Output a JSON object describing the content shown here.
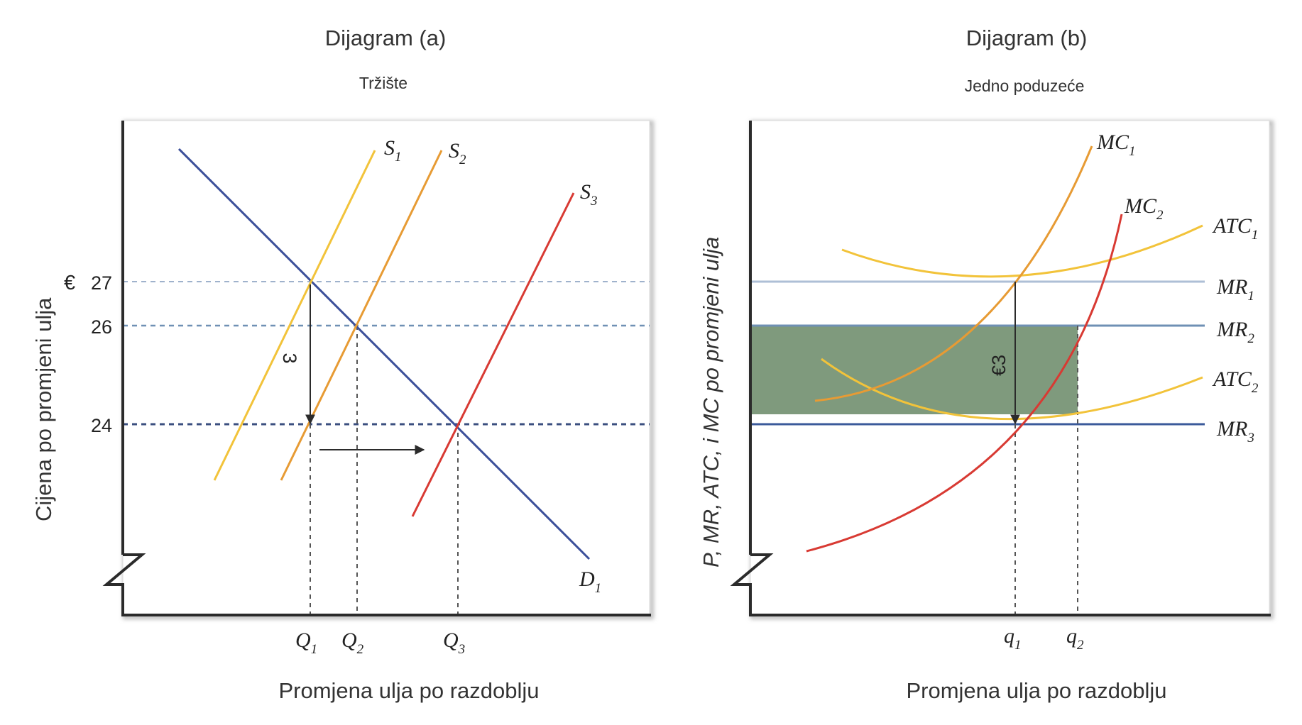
{
  "panel_a": {
    "title": "Dijagram (a)",
    "subtitle": "Tržište",
    "y_axis_title": "Cijena po promjeni ulja",
    "x_axis_title": "Promjena ulja po razdoblju",
    "currency_symbol": "€",
    "price_ticks": [
      "27",
      "26",
      "24"
    ],
    "price_drop_label": "3",
    "curves": {
      "s1": {
        "base": "S",
        "sub": "1"
      },
      "s2": {
        "base": "S",
        "sub": "2"
      },
      "s3": {
        "base": "S",
        "sub": "3"
      },
      "d1": {
        "base": "D",
        "sub": "1"
      }
    },
    "quantity_ticks": [
      {
        "base": "Q",
        "sub": "1"
      },
      {
        "base": "Q",
        "sub": "2"
      },
      {
        "base": "Q",
        "sub": "3"
      }
    ]
  },
  "panel_b": {
    "title": "Dijagram (b)",
    "subtitle": "Jedno poduzeće",
    "y_axis_title": "P, MR, ATC, i MC po promjeni ulja",
    "x_axis_title": "Promjena ulja po razdoblju",
    "price_drop_label": "€3",
    "curves": {
      "mc1": {
        "base": "MC",
        "sub": "1"
      },
      "mc2": {
        "base": "MC",
        "sub": "2"
      },
      "atc1": {
        "base": "ATC",
        "sub": "1"
      },
      "atc2": {
        "base": "ATC",
        "sub": "2"
      },
      "mr1": {
        "base": "MR",
        "sub": "1"
      },
      "mr2": {
        "base": "MR",
        "sub": "2"
      },
      "mr3": {
        "base": "MR",
        "sub": "3"
      }
    },
    "quantity_ticks": [
      {
        "base": "q",
        "sub": "1"
      },
      {
        "base": "q",
        "sub": "2"
      }
    ]
  },
  "colors": {
    "demand": "#3b4f9a",
    "s1": "#f2c33a",
    "s2": "#e79b34",
    "s3": "#d83a33",
    "mc1": "#e79b34",
    "mc2": "#d83a33",
    "atc": "#f2c33a",
    "mr1": "#aebfd6",
    "mr2": "#6f90b4",
    "mr3": "#3b5a9a",
    "shade": "#7f9a7d",
    "axis": "#2b2b2b"
  }
}
